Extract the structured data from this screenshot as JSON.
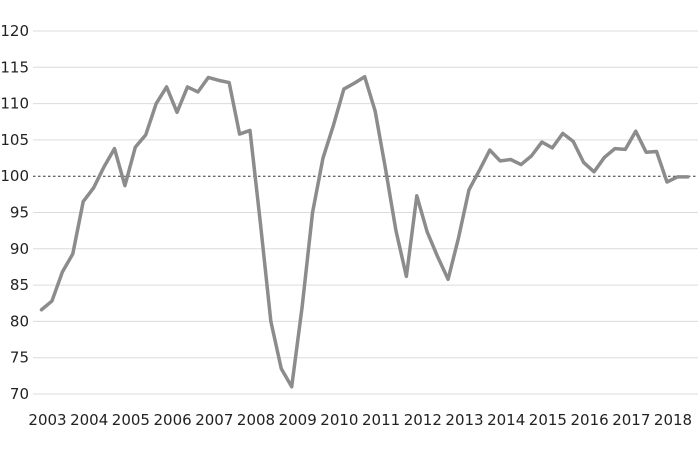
{
  "chart_data": {
    "type": "line",
    "title": "",
    "xlabel": "",
    "ylabel": "",
    "ylim": [
      70,
      120
    ],
    "y_ticks": [
      70,
      75,
      80,
      85,
      90,
      95,
      100,
      105,
      110,
      115,
      120
    ],
    "y_tick_labels": [
      "70",
      "75",
      "80",
      "85",
      "90",
      "95",
      "100",
      "105",
      "110",
      "115",
      "120"
    ],
    "x_tick_labels": [
      "2003",
      "2004",
      "2005",
      "2006",
      "2007",
      "2008",
      "2009",
      "2010",
      "2011",
      "2012",
      "2013",
      "2014",
      "2015",
      "2016",
      "2017",
      "2018"
    ],
    "grid": "horizontal",
    "reference_line": {
      "value": 100,
      "style": "dotted"
    },
    "line_color": "#8c8c8c",
    "x": [
      "2003 Q1",
      "2003 Q2",
      "2003 Q3",
      "2003 Q4",
      "2004 Q1",
      "2004 Q2",
      "2004 Q3",
      "2004 Q4",
      "2005 Q1",
      "2005 Q2",
      "2005 Q3",
      "2005 Q4",
      "2006 Q1",
      "2006 Q2",
      "2006 Q3",
      "2006 Q4",
      "2007 Q1",
      "2007 Q2",
      "2007 Q3",
      "2007 Q4",
      "2008 Q1",
      "2008 Q2",
      "2008 Q3",
      "2008 Q4",
      "2009 Q1",
      "2009 Q2",
      "2009 Q3",
      "2009 Q4",
      "2010 Q1",
      "2010 Q2",
      "2010 Q3",
      "2010 Q4",
      "2011 Q1",
      "2011 Q2",
      "2011 Q3",
      "2011 Q4",
      "2012 Q1",
      "2012 Q2",
      "2012 Q3",
      "2012 Q4",
      "2013 Q1",
      "2013 Q2",
      "2013 Q3",
      "2013 Q4",
      "2014 Q1",
      "2014 Q2",
      "2014 Q3",
      "2014 Q4",
      "2015 Q1",
      "2015 Q2",
      "2015 Q3",
      "2015 Q4",
      "2016 Q1",
      "2016 Q2",
      "2016 Q3",
      "2016 Q4",
      "2017 Q1",
      "2017 Q2",
      "2017 Q3",
      "2017 Q4",
      "2018 Q1",
      "2018 Q2",
      "2018 Q3"
    ],
    "series": [
      {
        "values": [
          81.6,
          82.8,
          86.8,
          89.3,
          96.5,
          98.4,
          101.3,
          103.8,
          98.7,
          104.0,
          105.7,
          110.0,
          112.3,
          108.8,
          112.3,
          111.6,
          113.6,
          113.2,
          112.9,
          105.8,
          106.3,
          93.5,
          80.0,
          73.5,
          71.0,
          82.0,
          95.0,
          102.5,
          107.0,
          112.0,
          112.8,
          113.7,
          109.0,
          101.0,
          92.5,
          86.2,
          97.3,
          92.3,
          88.9,
          85.8,
          91.5,
          98.1,
          100.8,
          103.6,
          102.1,
          102.3,
          101.6,
          102.8,
          104.7,
          103.9,
          105.9,
          104.8,
          101.9,
          100.6,
          102.6,
          103.8,
          103.7,
          106.2,
          103.3,
          103.4,
          99.2,
          99.9,
          99.9
        ]
      }
    ]
  }
}
